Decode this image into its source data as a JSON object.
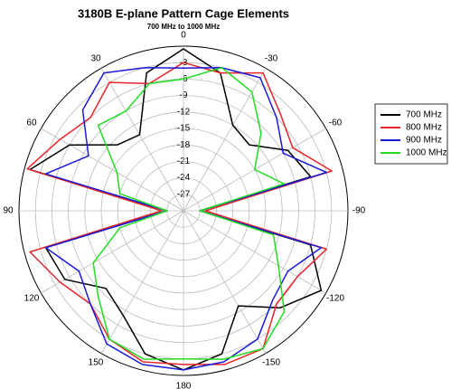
{
  "chart_data": {
    "type": "polar",
    "title": "3180B E-plane Pattern Cage Elements",
    "subtitle": "700 MHz to 1000 MHz",
    "theta": [
      0,
      15,
      30,
      45,
      60,
      75,
      90,
      105,
      120,
      135,
      150,
      165,
      180,
      -165,
      -150,
      -135,
      -120,
      -105,
      -90,
      -75,
      -60,
      -45,
      -30,
      -15
    ],
    "rlim": [
      -30,
      0
    ],
    "rticks": [
      -3,
      -6,
      -9,
      -12,
      -15,
      -18,
      -21,
      -24,
      -27
    ],
    "thetaticks": [
      0,
      30,
      60,
      90,
      120,
      150,
      180,
      -150,
      -120,
      -90,
      -60,
      -30
    ],
    "legend": "right",
    "series": [
      {
        "name": "700 MHz",
        "color": "#000000",
        "values": [
          -0.5,
          -4,
          -14,
          -13,
          -6,
          -1,
          -27,
          -4,
          -5,
          -10,
          -8,
          -3,
          -1,
          -3,
          -10,
          -5,
          -1,
          -6,
          -27,
          -6,
          -8,
          -13,
          -12,
          -4
        ]
      },
      {
        "name": "800 MHz",
        "color": "#e8262a",
        "values": [
          -3,
          -6,
          -3,
          -6,
          -4,
          -0.5,
          -26,
          -1,
          -4,
          -6,
          -3,
          -1.5,
          -2,
          -1,
          -1,
          -6,
          -6,
          -3,
          -26,
          -2,
          -7,
          -5,
          -1,
          -4
        ]
      },
      {
        "name": "900 MHz",
        "color": "#1a1ad6",
        "values": [
          -4,
          -3,
          -1,
          -4,
          -10,
          -4,
          -27,
          -4,
          -8,
          -6,
          -2,
          -1,
          -1,
          -1.5,
          -3,
          -7,
          -8,
          -4,
          -27,
          -3,
          -9,
          -6,
          -2,
          -3
        ]
      },
      {
        "name": "1000 MHz",
        "color": "#22dd22",
        "values": [
          -6,
          -6,
          -9,
          -8,
          -16,
          -18,
          -27,
          -18,
          -11,
          -8,
          -3,
          -2,
          -3,
          -2,
          -1,
          -4,
          -10,
          -13,
          -27,
          -11,
          -15,
          -10,
          -5,
          -3
        ]
      }
    ]
  }
}
